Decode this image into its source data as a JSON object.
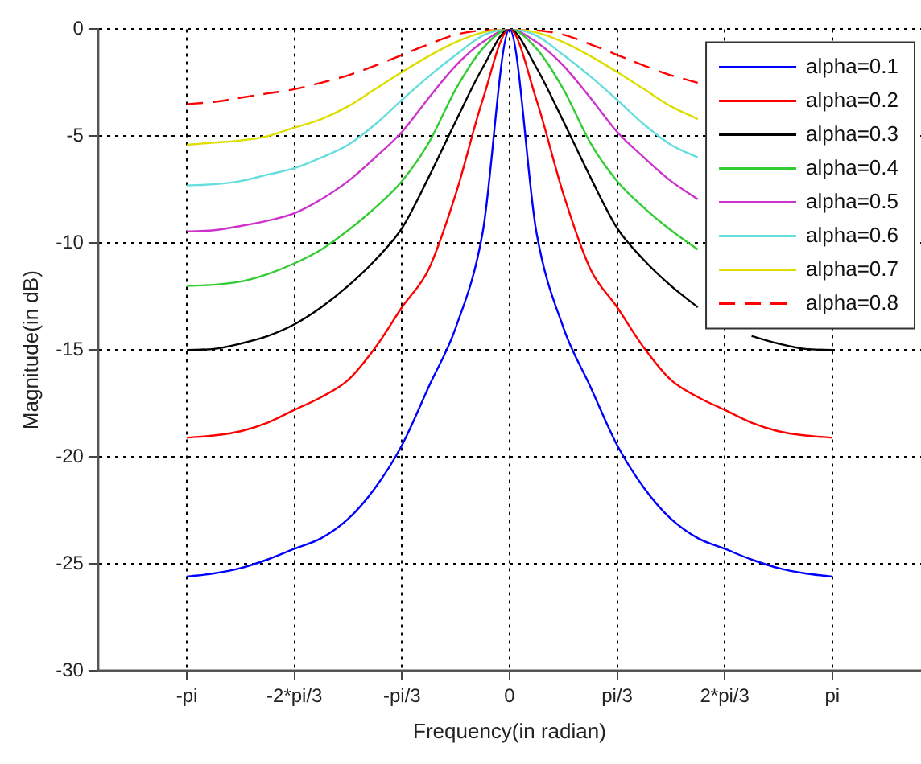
{
  "chart_data": {
    "type": "line",
    "xlabel": "Frequency(in radian)",
    "ylabel": "Magnitude(in dB)",
    "categories": [
      "-pi",
      null,
      null,
      null,
      "-2*pi/3",
      null,
      null,
      null,
      "-pi/3",
      null,
      null,
      null,
      "0",
      null,
      null,
      null,
      "pi/3",
      null,
      null,
      null,
      "2*pi/3",
      null,
      null,
      null,
      "pi"
    ],
    "ylim": [
      -30,
      0
    ],
    "yticks": [
      -30,
      -25,
      -20,
      -15,
      -10,
      -5,
      0
    ],
    "grid": true,
    "legend": "top right",
    "marker": "none",
    "series": [
      {
        "name": "alpha=0.1",
        "color": "#0000ff",
        "values": [
          -25.6,
          -25.45,
          -25.2,
          -24.8,
          -24.3,
          -23.8,
          -22.9,
          -21.45,
          -19.45,
          -16.7,
          -13.95,
          -9.5,
          0,
          -9.5,
          -13.95,
          -16.7,
          -19.45,
          -21.45,
          -22.9,
          -23.8,
          -24.3,
          -24.8,
          -25.2,
          -25.45,
          -25.6
        ]
      },
      {
        "name": "alpha=0.2",
        "color": "#ff0000",
        "values": [
          -19.1,
          -19,
          -18.8,
          -18.4,
          -17.8,
          -17.2,
          -16.4,
          -14.9,
          -13,
          -11.2,
          -7.7,
          -3.3,
          0,
          -3.3,
          -7.7,
          -11.2,
          -13,
          -14.9,
          -16.4,
          -17.2,
          -17.8,
          -18.4,
          -18.8,
          -19,
          -19.1
        ]
      },
      {
        "name": "alpha=0.3",
        "color": "#000000",
        "values": [
          -15,
          -14.95,
          -14.7,
          -14.35,
          -13.8,
          -13,
          -12,
          -10.8,
          -9.3,
          -6.9,
          -4.3,
          -1.8,
          0,
          -1.8,
          -4.3,
          -6.9,
          -9.3,
          -10.8,
          -12,
          -13,
          null,
          -14.35,
          -14.7,
          -14.95,
          -15
        ]
      },
      {
        "name": "alpha=0.4",
        "color": "#33cc33",
        "values": [
          -12,
          -11.95,
          -11.8,
          -11.45,
          -10.95,
          -10.3,
          -9.4,
          -8.35,
          -7.1,
          -5.3,
          -2.8,
          -0.9,
          0,
          -0.9,
          -2.8,
          -5.3,
          -7.1,
          -8.35,
          -9.4,
          -10.3,
          null,
          null,
          null,
          null,
          null
        ]
      },
      {
        "name": "alpha=0.5",
        "color": "#cc33cc",
        "values": [
          -9.45,
          -9.4,
          -9.2,
          -8.95,
          -8.6,
          -7.95,
          -7.1,
          -6,
          -4.8,
          -3.2,
          -1.7,
          -0.6,
          0,
          -0.6,
          -1.7,
          -3.2,
          -4.8,
          -6,
          -7.1,
          -7.95,
          null,
          null,
          null,
          null,
          null
        ]
      },
      {
        "name": "alpha=0.6",
        "color": "#66dddd",
        "values": [
          -7.3,
          -7.25,
          -7.1,
          -6.8,
          -6.5,
          -6,
          -5.4,
          -4.45,
          -3.3,
          -2.2,
          -1.2,
          -0.3,
          0,
          -0.3,
          -1.2,
          -2.2,
          -3.3,
          -4.45,
          -5.4,
          -6,
          null,
          null,
          null,
          null,
          null
        ]
      },
      {
        "name": "alpha=0.7",
        "color": "#dddd00",
        "values": [
          -5.4,
          -5.3,
          -5.2,
          -5,
          -4.6,
          -4.2,
          -3.6,
          -2.8,
          -2,
          -1.25,
          -0.6,
          -0.15,
          0,
          -0.15,
          -0.6,
          -1.25,
          -2,
          -2.8,
          -3.6,
          -4.2,
          null,
          null,
          null,
          null,
          null
        ]
      },
      {
        "name": "alpha=0.8",
        "color": "#ff0000",
        "line_style": "dashed",
        "values": [
          -3.5,
          -3.4,
          -3.2,
          -3,
          -2.8,
          -2.5,
          -2.15,
          -1.7,
          -1.2,
          -0.7,
          -0.25,
          -0.05,
          0,
          -0.05,
          -0.25,
          -0.7,
          -1.2,
          -1.7,
          -2.15,
          -2.5,
          null,
          null,
          null,
          null,
          null
        ]
      }
    ]
  }
}
